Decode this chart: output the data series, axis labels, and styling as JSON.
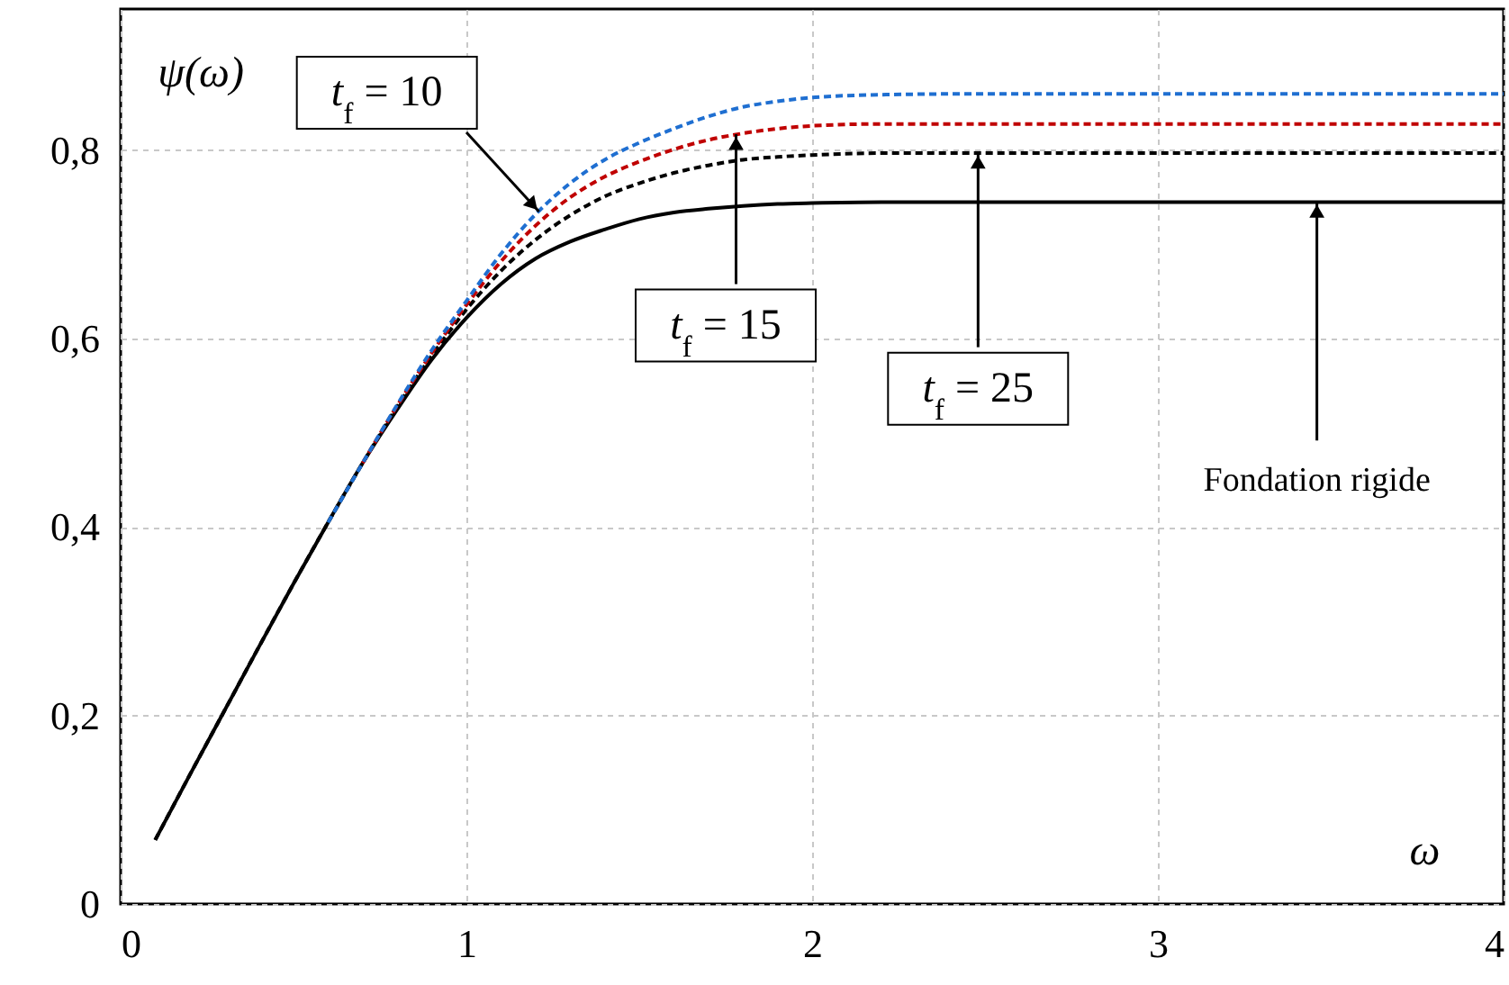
{
  "chart_data": {
    "type": "line",
    "xlabel": "ω",
    "ylabel": "ψ(ω)",
    "x": [
      0.1,
      0.2,
      0.3,
      0.4,
      0.5,
      0.6,
      0.7,
      0.8,
      0.9,
      1.0,
      1.1,
      1.2,
      1.3,
      1.4,
      1.5,
      1.6,
      1.7,
      1.8,
      1.9,
      2.0,
      2.2,
      2.5,
      3.0,
      3.5,
      4.0
    ],
    "series": [
      {
        "color": "#1f6fd1",
        "line_style": "dashed",
        "values": [
          null,
          null,
          null,
          null,
          null,
          0.405,
          0.468,
          0.53,
          0.588,
          0.64,
          0.69,
          0.732,
          0.765,
          0.79,
          0.808,
          0.823,
          0.836,
          0.846,
          0.852,
          0.856,
          0.859,
          0.86,
          0.86,
          0.86,
          0.86
        ]
      },
      {
        "color": "#c00000",
        "line_style": "dashed",
        "values": [
          null,
          null,
          null,
          null,
          null,
          null,
          0.468,
          0.529,
          0.585,
          0.636,
          0.682,
          0.72,
          0.75,
          0.772,
          0.788,
          0.801,
          0.811,
          0.818,
          0.823,
          0.826,
          0.828,
          0.828,
          0.828,
          0.828,
          0.828
        ]
      },
      {
        "color": "#000000",
        "line_style": "dashed",
        "values": [
          0.068,
          0.137,
          0.205,
          0.273,
          0.34,
          0.405,
          0.468,
          0.528,
          0.582,
          0.631,
          0.672,
          0.705,
          0.731,
          0.751,
          0.765,
          0.776,
          0.784,
          0.79,
          0.793,
          0.795,
          0.797,
          0.797,
          0.797,
          0.797,
          0.797
        ]
      },
      {
        "color": "#000000",
        "line_style": "solid",
        "values": [
          0.068,
          0.137,
          0.205,
          0.273,
          0.34,
          0.405,
          0.468,
          0.525,
          0.578,
          0.622,
          0.658,
          0.685,
          0.703,
          0.716,
          0.727,
          0.734,
          0.738,
          0.741,
          0.743,
          0.744,
          0.745,
          0.745,
          0.745,
          0.745,
          0.745
        ]
      }
    ],
    "annotations": [
      {
        "text": "t$_{f}$ = 10",
        "x": 1.21,
        "y": 0.735
      },
      {
        "text": "t$_{f}$ = 15",
        "x": 1.78,
        "y": 0.817
      },
      {
        "text": "t$_{f}$ = 25",
        "x": 2.48,
        "y": 0.797
      },
      {
        "text": "Fondation rigide",
        "x": 3.46,
        "y": 0.745
      }
    ],
    "xlim": [
      0,
      4
    ],
    "xticks": [
      0,
      1,
      2,
      3,
      4
    ],
    "ylim": [
      0,
      0.95
    ],
    "yticks": [
      0,
      {
        "value": 0.2,
        "label": "0,2"
      },
      {
        "value": 0.4,
        "label": "0,4"
      },
      {
        "value": 0.6,
        "label": "0,6"
      },
      {
        "value": 0.8,
        "label": "0,8"
      }
    ],
    "grid": true
  }
}
